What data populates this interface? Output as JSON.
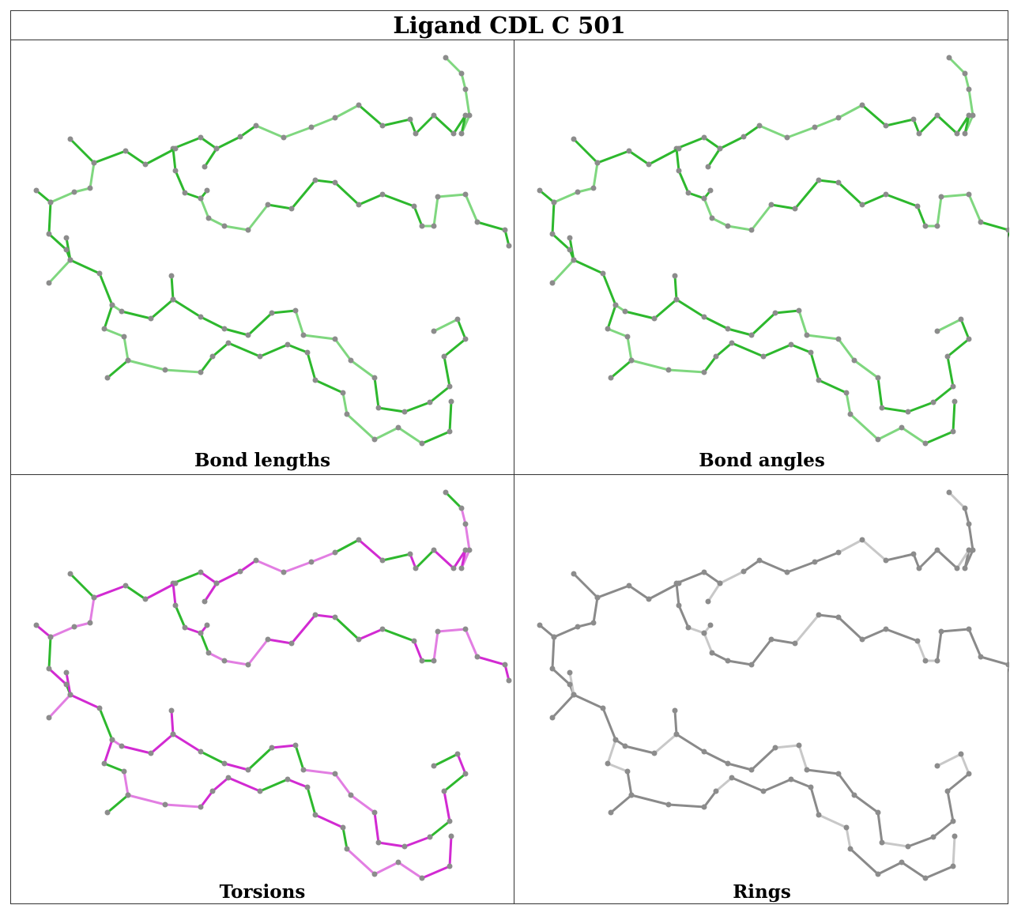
{
  "title": "Ligand CDL C 501",
  "panels": [
    {
      "caption": "Bond lengths",
      "style": "green"
    },
    {
      "caption": "Bond angles",
      "style": "green"
    },
    {
      "caption": "Torsions",
      "style": "torsion"
    },
    {
      "caption": "Rings",
      "style": "gray"
    }
  ],
  "colors": {
    "green_dark": "#2db82d",
    "green_light": "#7fd77f",
    "magenta": "#d22ad2",
    "magenta_light": "#e27ee2",
    "gray": "#8a8a8a",
    "gray_light": "#c8c8c8",
    "atom": "#8c8c8c"
  }
}
